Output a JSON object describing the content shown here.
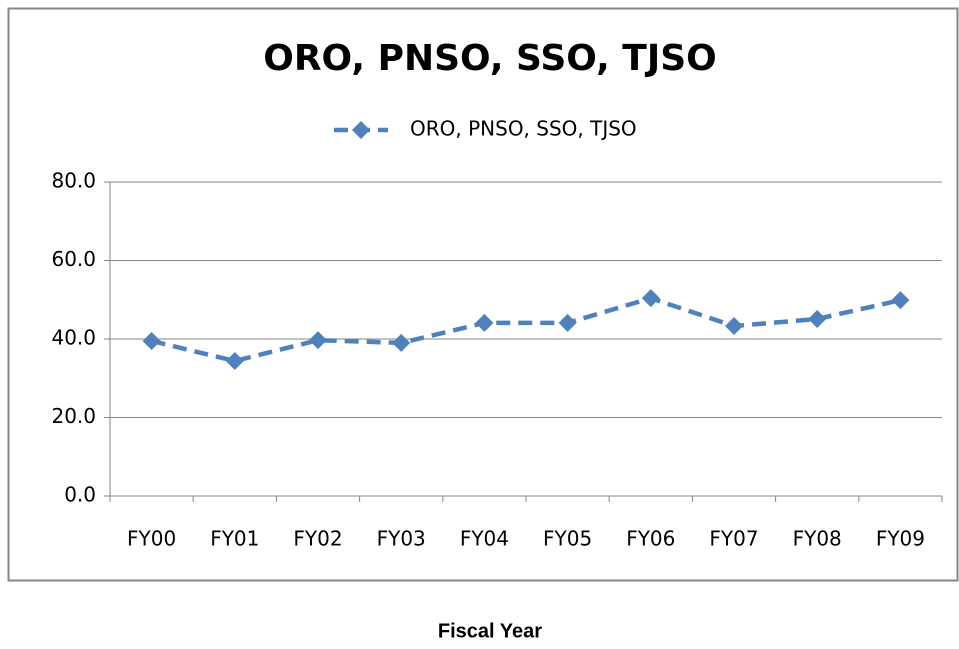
{
  "chart_data": {
    "type": "line",
    "title": "ORO, PNSO, SSO, TJSO",
    "x_label": "Fiscal Year",
    "categories": [
      "FY00",
      "FY01",
      "FY02",
      "FY03",
      "FY04",
      "FY05",
      "FY06",
      "FY07",
      "FY08",
      "FY09"
    ],
    "series": [
      {
        "name": "ORO, PNSO, SSO, TJSO",
        "color": "#4f81bd",
        "values": [
          39.5,
          34.4,
          39.7,
          39.0,
          44.1,
          44.1,
          50.4,
          43.3,
          45.1,
          49.9
        ]
      }
    ],
    "ylim": [
      0,
      80
    ],
    "yticks": [
      {
        "value": 0,
        "label": "0.0"
      },
      {
        "value": 20,
        "label": "20.0"
      },
      {
        "value": 40,
        "label": "40.0"
      },
      {
        "value": 60,
        "label": "60.0"
      },
      {
        "value": 80,
        "label": "80.0"
      }
    ],
    "grid": true,
    "legend": "top"
  }
}
